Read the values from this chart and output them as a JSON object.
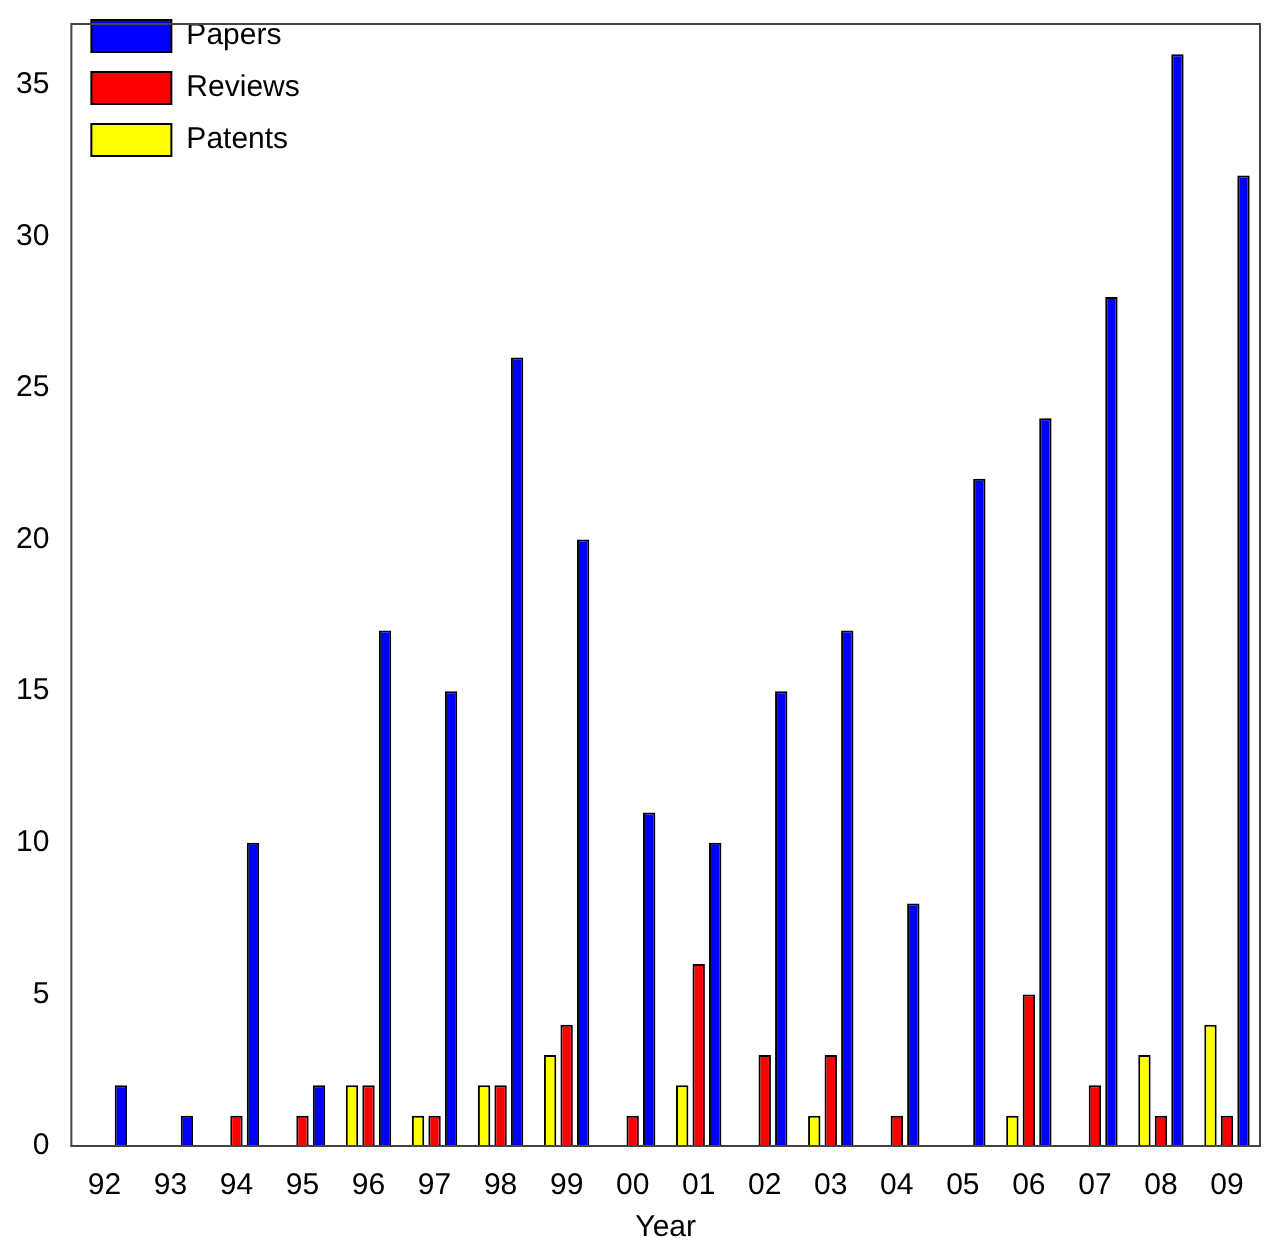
{
  "chart_data": {
    "type": "bar",
    "xlabel": "Year",
    "categories": [
      "92",
      "93",
      "94",
      "95",
      "96",
      "97",
      "98",
      "99",
      "00",
      "01",
      "02",
      "03",
      "04",
      "05",
      "06",
      "07",
      "08",
      "09"
    ],
    "series": [
      {
        "name": "Papers",
        "color": "#0000ff",
        "values": [
          2,
          1,
          10,
          2,
          17,
          15,
          26,
          20,
          11,
          10,
          15,
          17,
          8,
          22,
          24,
          28,
          36,
          32
        ]
      },
      {
        "name": "Reviews",
        "color": "#ff0000",
        "values": [
          0,
          0,
          1,
          1,
          2,
          1,
          2,
          4,
          1,
          6,
          3,
          3,
          1,
          0,
          5,
          2,
          1,
          1
        ]
      },
      {
        "name": "Patents",
        "color": "#ffff00",
        "values": [
          0,
          0,
          0,
          0,
          2,
          1,
          2,
          3,
          0,
          2,
          0,
          1,
          0,
          0,
          1,
          0,
          3,
          4
        ]
      }
    ],
    "ylim": [
      0,
      37
    ],
    "yticks": [
      0,
      5,
      10,
      15,
      20,
      25,
      30,
      35
    ],
    "grid": false,
    "legend": "top left"
  }
}
